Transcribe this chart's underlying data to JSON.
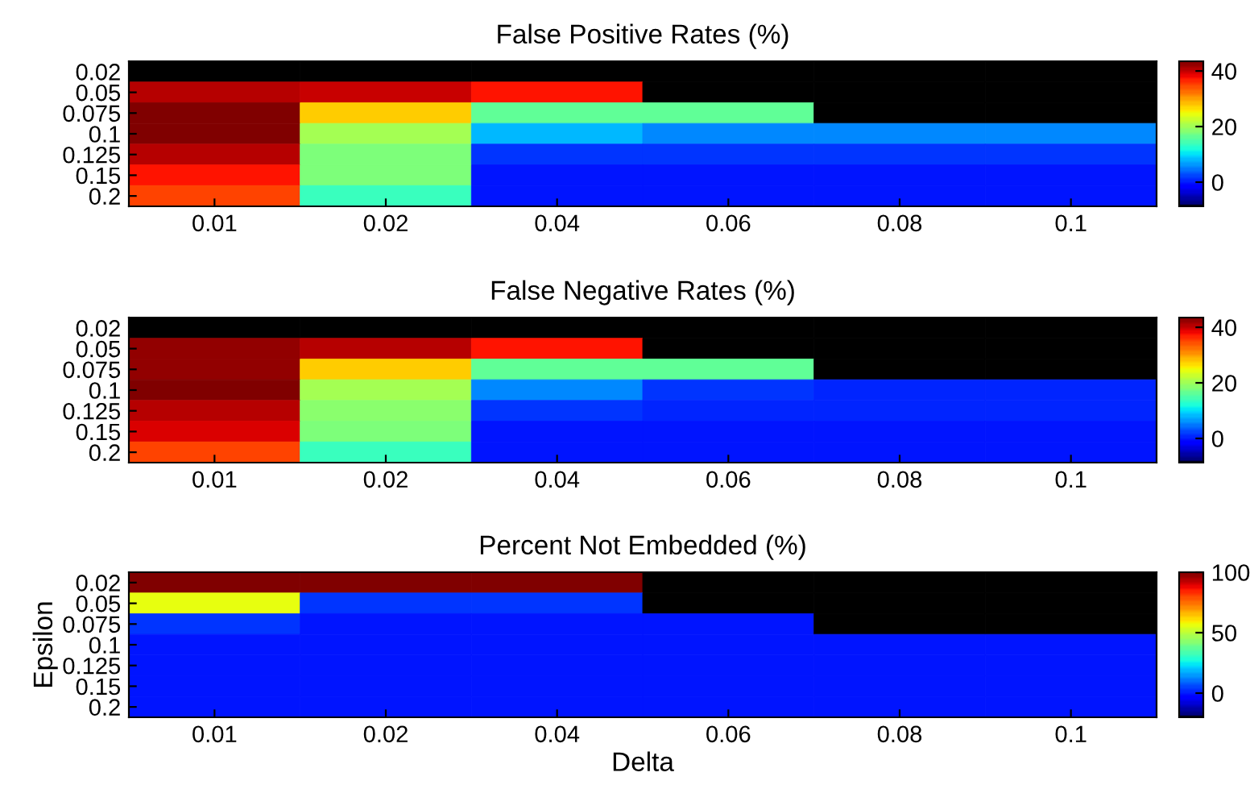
{
  "chart_data": [
    {
      "type": "heatmap",
      "title": "False Positive Rates (%)",
      "categories": [
        "0.01",
        "0.02",
        "0.04",
        "0.06",
        "0.08",
        "0.1"
      ],
      "y_categories": [
        "0.02",
        "0.05",
        "0.075",
        "0.1",
        "0.125",
        "0.15",
        "0.2"
      ],
      "cells": [
        [
          null,
          null,
          null,
          null,
          null,
          null
        ],
        [
          40.4,
          40,
          37,
          null,
          null,
          null
        ],
        [
          43.5,
          27.3,
          16.4,
          16.4,
          null,
          null
        ],
        [
          43,
          20,
          8,
          5.4,
          5.4,
          5.4
        ],
        [
          41,
          18,
          1.7,
          1.2,
          1.2,
          1.2
        ],
        [
          37,
          18,
          0,
          0,
          0,
          0
        ],
        [
          35,
          13.7,
          0,
          0,
          0,
          0
        ]
      ],
      "clim": [
        -8.7,
        43.5
      ],
      "cticks": [
        0,
        20,
        40
      ]
    },
    {
      "type": "heatmap",
      "title": "False Negative Rates (%)",
      "categories": [
        "0.01",
        "0.02",
        "0.04",
        "0.06",
        "0.08",
        "0.1"
      ],
      "y_categories": [
        "0.02",
        "0.05",
        "0.075",
        "0.1",
        "0.125",
        "0.15",
        "0.2"
      ],
      "cells": [
        [
          null,
          null,
          null,
          null,
          null,
          null
        ],
        [
          42,
          40.5,
          37,
          null,
          null,
          null
        ],
        [
          42,
          27.3,
          16.4,
          16.4,
          null,
          null
        ],
        [
          43.5,
          20,
          5.4,
          1.7,
          0.5,
          0.5
        ],
        [
          41,
          18.5,
          1.2,
          0.5,
          1,
          0.5
        ],
        [
          39,
          17.5,
          0,
          0,
          0,
          0
        ],
        [
          35,
          13.7,
          0,
          0,
          0,
          0
        ]
      ],
      "clim": [
        -8.7,
        43.5
      ],
      "cticks": [
        0,
        20,
        40
      ]
    },
    {
      "type": "heatmap",
      "title": "Percent Not Embedded (%)",
      "xlabel": "Delta",
      "ylabel": "Epsilon",
      "categories": [
        "0.01",
        "0.02",
        "0.04",
        "0.06",
        "0.08",
        "0.1"
      ],
      "y_categories": [
        "0.02",
        "0.05",
        "0.075",
        "0.1",
        "0.125",
        "0.15",
        "0.2"
      ],
      "cells": [
        [
          100,
          100,
          100,
          null,
          null,
          null
        ],
        [
          55,
          4,
          4,
          null,
          null,
          null
        ],
        [
          3,
          0,
          0,
          0,
          null,
          null
        ],
        [
          0,
          0,
          0,
          0,
          0,
          0
        ],
        [
          0,
          0,
          0,
          0,
          0,
          0
        ],
        [
          0,
          0,
          0,
          0,
          0,
          0
        ],
        [
          0,
          0,
          0,
          0,
          0,
          0
        ]
      ],
      "clim": [
        -20,
        100
      ],
      "cticks": [
        0,
        50,
        100
      ]
    }
  ]
}
